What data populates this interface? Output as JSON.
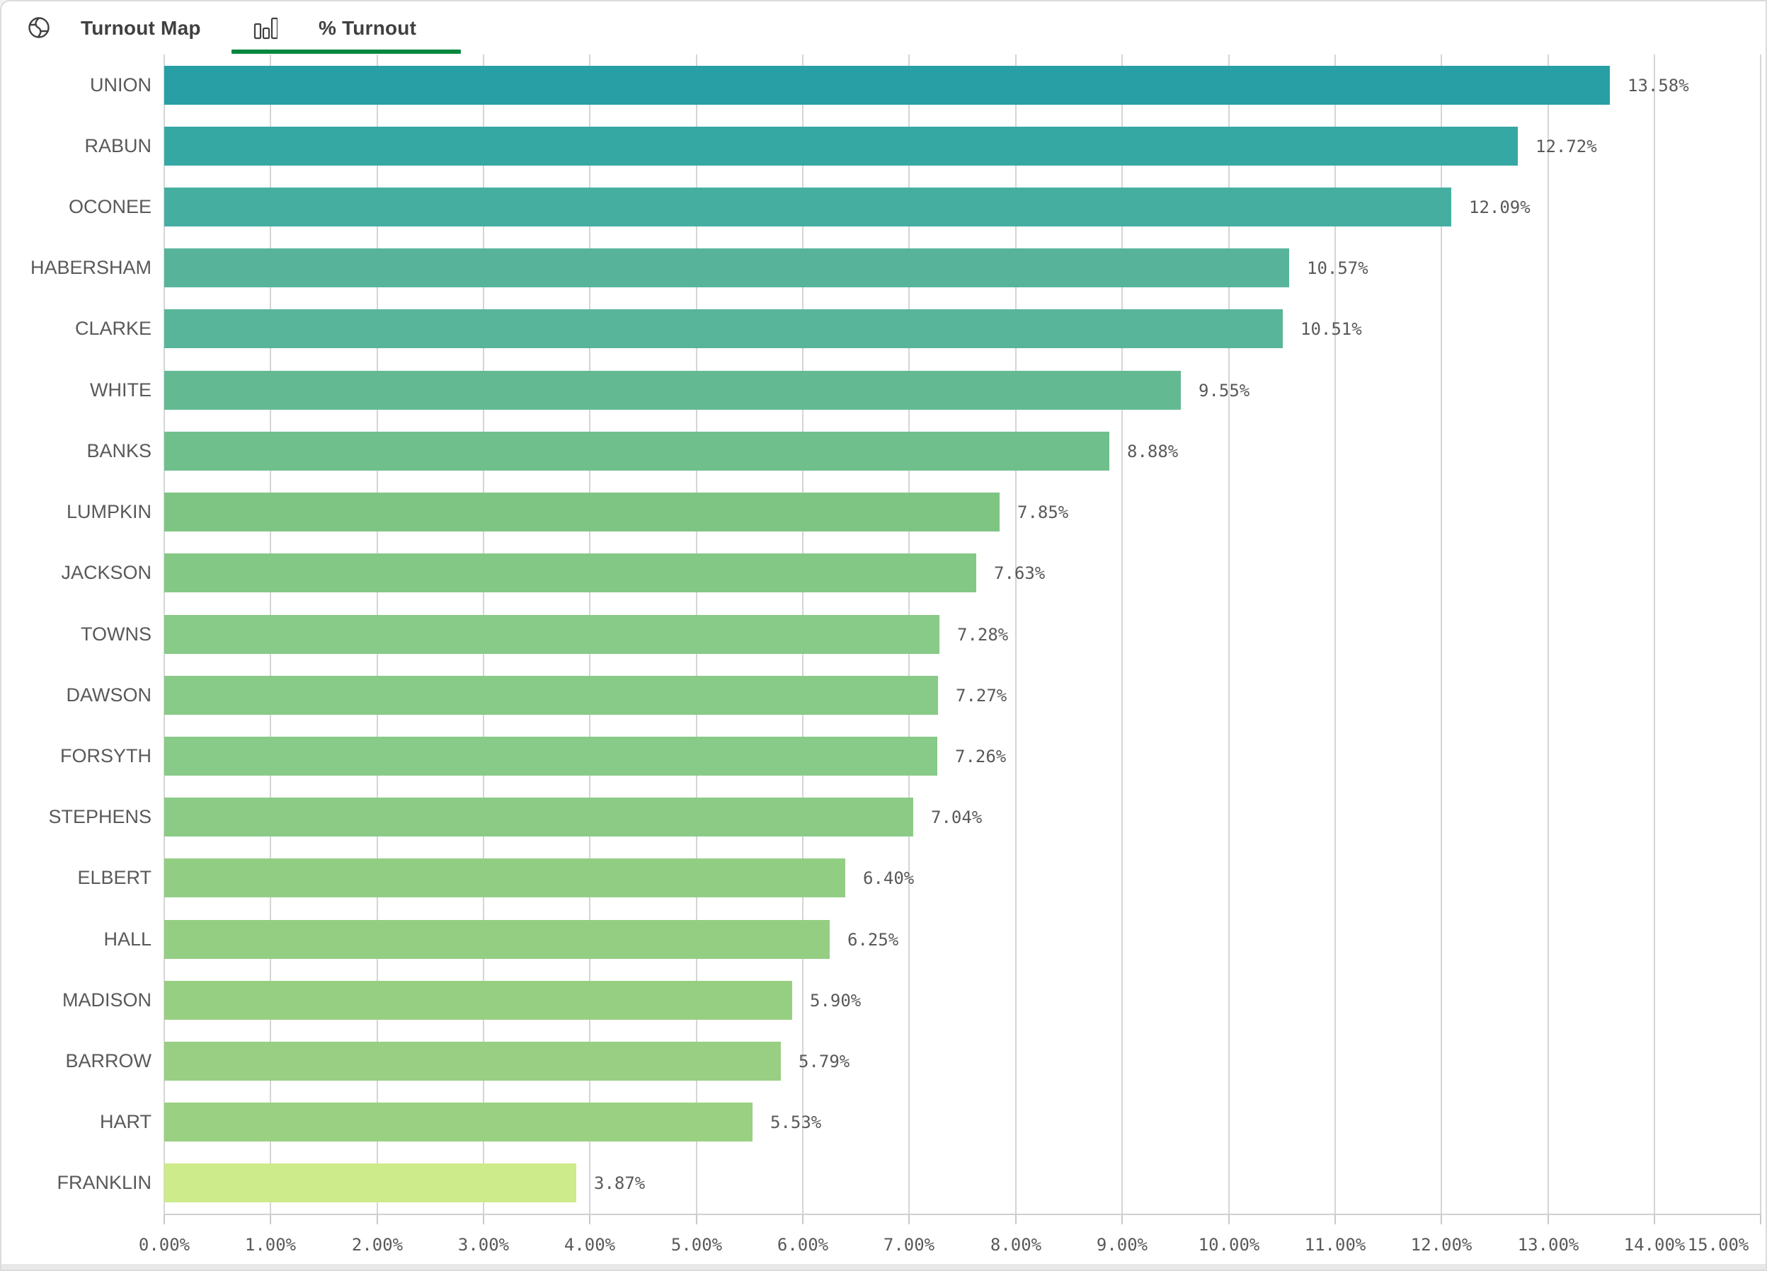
{
  "header": {
    "tabs": [
      {
        "label": "Turnout Map",
        "icon": "globe-icon",
        "active": false
      },
      {
        "label": "% Turnout",
        "icon": "bar-chart-icon",
        "active": true
      }
    ],
    "active_color": "#00873d",
    "text_color": "#404040"
  },
  "chart_data": {
    "type": "bar",
    "orientation": "horizontal",
    "title": "% Turnout",
    "categories": [
      "UNION",
      "RABUN",
      "OCONEE",
      "HABERSHAM",
      "CLARKE",
      "WHITE",
      "BANKS",
      "LUMPKIN",
      "JACKSON",
      "TOWNS",
      "DAWSON",
      "FORSYTH",
      "STEPHENS",
      "ELBERT",
      "HALL",
      "MADISON",
      "BARROW",
      "HART",
      "FRANKLIN"
    ],
    "values": [
      13.58,
      12.72,
      12.09,
      10.57,
      10.51,
      9.55,
      8.88,
      7.85,
      7.63,
      7.28,
      7.27,
      7.26,
      7.04,
      6.4,
      6.25,
      5.9,
      5.79,
      5.53,
      3.87
    ],
    "value_labels": [
      "13.58%",
      "12.72%",
      "12.09%",
      "10.57%",
      "10.51%",
      "9.55%",
      "8.88%",
      "7.85%",
      "7.63%",
      "7.28%",
      "7.27%",
      "7.26%",
      "7.04%",
      "6.40%",
      "6.25%",
      "5.90%",
      "5.79%",
      "5.53%",
      "3.87%"
    ],
    "bar_colors": [
      "#289fa4",
      "#36a8a4",
      "#46aea1",
      "#57b49a",
      "#58b599",
      "#63ba92",
      "#6fbf8c",
      "#7ec584",
      "#84c886",
      "#88ca87",
      "#88ca87",
      "#88ca87",
      "#8bcb86",
      "#92cd84",
      "#94ce83",
      "#97cf82",
      "#98cf82",
      "#9ad081",
      "#cdeb8b"
    ],
    "x_axis": {
      "min": 0,
      "max": 15,
      "tick_step": 1,
      "tick_labels": [
        "0.00%",
        "1.00%",
        "2.00%",
        "3.00%",
        "4.00%",
        "5.00%",
        "6.00%",
        "7.00%",
        "8.00%",
        "9.00%",
        "10.00%",
        "11.00%",
        "12.00%",
        "13.00%",
        "14.00%",
        "15.00%"
      ]
    },
    "grid": true,
    "legend": false,
    "label_color": "#595959"
  }
}
